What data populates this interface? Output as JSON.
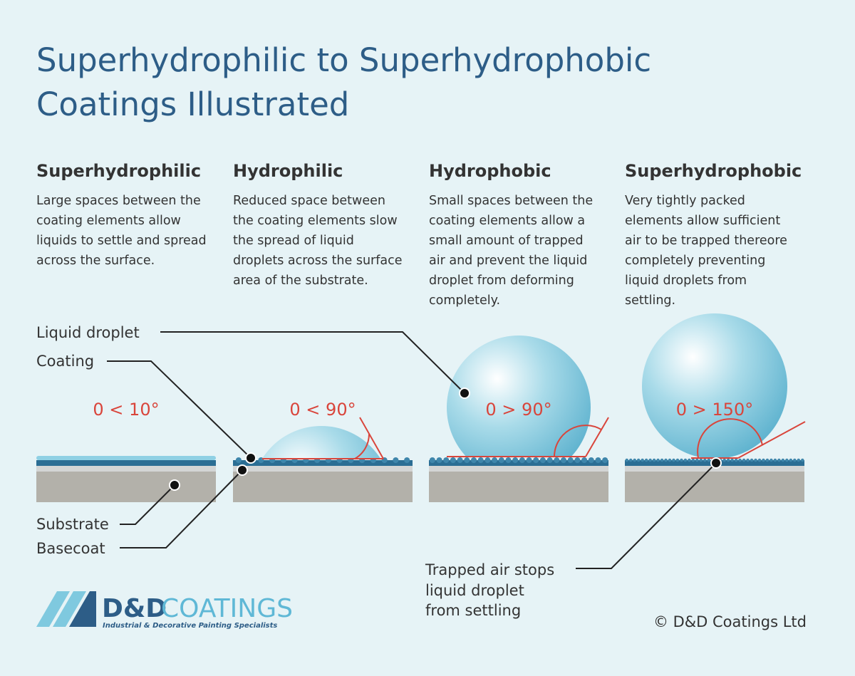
{
  "title": {
    "lines": [
      "Superhydrophilic to Superhydrophobic",
      "Coatings Illustrated"
    ]
  },
  "columns": [
    {
      "heading": "Superhydrophilic",
      "body": [
        "Large spaces between the",
        "coating elements allow",
        "liquids to settle and spread",
        "across the surface."
      ],
      "angle": "0 < 10°"
    },
    {
      "heading": "Hydrophilic",
      "body": [
        "Reduced space between",
        "the coating elements slow",
        "the spread of liquid",
        "droplets across the surface",
        "area of the substrate."
      ],
      "angle": "0 < 90°"
    },
    {
      "heading": "Hydrophobic",
      "body": [
        "Small spaces between the",
        "coating elements allow a",
        "small amount of trapped",
        "air and prevent the liquid",
        "droplet from deforming",
        "completely."
      ],
      "angle": "0 > 90°"
    },
    {
      "heading": "Superhydrophobic",
      "body": [
        "Very tightly packed",
        "elements allow sufficient",
        "air to be trapped thereore",
        "completely preventing",
        "liquid droplets from",
        "settling."
      ],
      "angle": "0 > 150°"
    }
  ],
  "callouts": {
    "liquid_droplet": "Liquid droplet",
    "coating": "Coating",
    "substrate": "Substrate",
    "basecoat": "Basecoat",
    "trapped_air": [
      "Trapped air stops",
      "liquid droplet",
      "from settling"
    ]
  },
  "logo": {
    "brand_a": "D&D",
    "brand_b": "COATINGS",
    "tagline": "Industrial & Decorative Painting Specialists"
  },
  "copyright": "© D&D Coatings Ltd"
}
